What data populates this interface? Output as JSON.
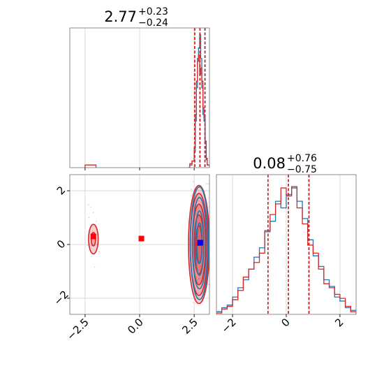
{
  "colors": {
    "series_a": "#1f77b4",
    "series_b": "#d62728",
    "grid": "#b0b0b0",
    "axes": "#000000",
    "marker_a": "#0000ff",
    "marker_b": "#ff0000"
  },
  "titles": {
    "param0": {
      "value": "2.77",
      "plus": "+0.23",
      "minus": "−0.24"
    },
    "param1": {
      "value": "0.08",
      "plus": "+0.76",
      "minus": "−0.75"
    }
  },
  "chart_data": [
    {
      "type": "step-histogram",
      "panel": "marginal-param0",
      "xlim": [
        -3.2,
        3.2
      ],
      "ylim": [
        0,
        1.05
      ],
      "grid": true,
      "bin_edges": [
        2.2,
        2.3,
        2.4,
        2.5,
        2.55,
        2.6,
        2.65,
        2.7,
        2.75,
        2.8,
        2.85,
        2.9,
        2.95,
        3.0,
        3.05,
        3.1,
        3.2
      ],
      "series": [
        {
          "values": [
            0.0,
            0.02,
            0.05,
            0.12,
            0.35,
            0.6,
            0.82,
            0.9,
            1.0,
            0.82,
            0.6,
            0.4,
            0.35,
            0.18,
            0.06,
            0.02
          ]
        },
        {
          "values": [
            0.0,
            0.03,
            0.05,
            0.15,
            0.4,
            0.65,
            0.8,
            0.85,
            0.7,
            0.75,
            0.65,
            0.45,
            0.38,
            0.2,
            0.07,
            0.02
          ]
        }
      ],
      "extra_bump": {
        "series": 1,
        "x": [
          -2.5,
          -2.0
        ],
        "height": 0.02
      },
      "quantile_lines": [
        {
          "series": 0,
          "x": [
            2.53,
            2.77,
            3.0
          ]
        },
        {
          "series": 1,
          "x": [
            2.52,
            2.76,
            2.99
          ]
        }
      ]
    },
    {
      "type": "contour",
      "panel": "joint",
      "xlim": [
        -3.2,
        3.2
      ],
      "ylim": [
        -2.6,
        2.6
      ],
      "grid": true,
      "xticks": [
        -2.5,
        0.0,
        2.5
      ],
      "xtick_labels": [
        "−2.5",
        "0.0",
        "2.5"
      ],
      "yticks": [
        -2,
        0,
        2
      ],
      "ytick_labels": [
        "−2",
        "0",
        "2"
      ],
      "contours": [
        {
          "series": 1,
          "center": [
            2.72,
            0.0
          ],
          "levels": [
            [
              0.48,
              2.2
            ],
            [
              0.4,
              1.9
            ],
            [
              0.3,
              1.5
            ],
            [
              0.22,
              1.1
            ],
            [
              0.14,
              0.7
            ]
          ],
          "filled": true
        },
        {
          "series": 0,
          "center": [
            2.74,
            0.05
          ],
          "levels": [
            [
              0.42,
              2.1
            ],
            [
              0.32,
              1.7
            ],
            [
              0.2,
              1.2
            ],
            [
              0.12,
              0.75
            ]
          ],
          "filled": false
        },
        {
          "series": 1,
          "center": [
            -2.12,
            0.2
          ],
          "levels": [
            [
              0.22,
              0.55
            ],
            [
              0.1,
              0.25
            ]
          ],
          "filled": true
        }
      ],
      "markers": [
        {
          "series": 1,
          "x": 0.08,
          "y": 0.22
        },
        {
          "series": 1,
          "x": -2.12,
          "y": 0.3
        },
        {
          "series": 1,
          "x": 2.76,
          "y": 0.05
        },
        {
          "series": 0,
          "x": 2.78,
          "y": 0.07
        }
      ]
    },
    {
      "type": "step-histogram",
      "panel": "marginal-param1",
      "xlim": [
        -2.6,
        2.6
      ],
      "ylim": [
        0,
        1.05
      ],
      "grid": true,
      "xticks": [
        -2,
        0,
        2
      ],
      "xtick_labels": [
        "−2",
        "0",
        "2"
      ],
      "bin_edges": [
        -2.6,
        -2.4,
        -2.2,
        -2.0,
        -1.8,
        -1.6,
        -1.4,
        -1.2,
        -1.0,
        -0.8,
        -0.6,
        -0.4,
        -0.2,
        0.0,
        0.2,
        0.4,
        0.6,
        0.8,
        1.0,
        1.2,
        1.4,
        1.6,
        1.8,
        2.0,
        2.2,
        2.4,
        2.6
      ],
      "series": [
        {
          "values": [
            0.02,
            0.05,
            0.07,
            0.13,
            0.2,
            0.26,
            0.34,
            0.43,
            0.5,
            0.62,
            0.7,
            0.85,
            0.8,
            0.9,
            0.95,
            0.85,
            0.72,
            0.56,
            0.44,
            0.36,
            0.26,
            0.21,
            0.13,
            0.1,
            0.05,
            0.03
          ]
        },
        {
          "values": [
            0.01,
            0.04,
            0.06,
            0.11,
            0.18,
            0.28,
            0.34,
            0.39,
            0.46,
            0.63,
            0.75,
            0.83,
            0.95,
            0.89,
            0.96,
            0.8,
            0.68,
            0.52,
            0.46,
            0.34,
            0.23,
            0.2,
            0.15,
            0.12,
            0.06,
            0.02
          ]
        }
      ],
      "quantile_lines": [
        {
          "series": 0,
          "x": [
            -0.68,
            0.08,
            0.84
          ]
        },
        {
          "series": 1,
          "x": [
            -0.68,
            0.08,
            0.85
          ]
        }
      ]
    }
  ]
}
